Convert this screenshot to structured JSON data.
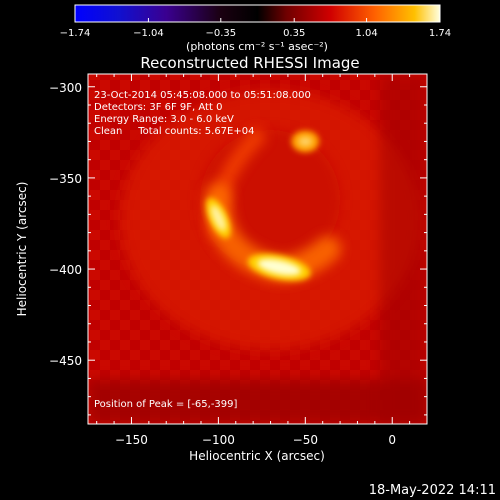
{
  "chart_data": {
    "type": "heatmap",
    "title": "Reconstructed RHESSI Image",
    "xlabel": "Heliocentric X (arcsec)",
    "ylabel": "Heliocentric Y (arcsec)",
    "xlim": [
      -175,
      20
    ],
    "ylim": [
      -485,
      -293
    ],
    "x_ticks": [
      -150,
      -100,
      -50,
      0
    ],
    "y_ticks": [
      -300,
      -350,
      -400,
      -450
    ],
    "x_tick_labels": [
      "−150",
      "−100",
      "−50",
      "0"
    ],
    "y_tick_labels": [
      "−300",
      "−350",
      "−400",
      "−450"
    ],
    "colorbar": {
      "min": -1.74,
      "max": 1.74,
      "tick_values": [
        -1.74,
        -1.04,
        -0.35,
        0.35,
        1.04,
        1.74
      ],
      "tick_labels": [
        "−1.74",
        "−1.04",
        "−0.35",
        "0.35",
        "1.04",
        "1.74"
      ],
      "unit_label": "(photons cm⁻² s⁻¹ asec⁻²)"
    },
    "sources": [
      {
        "x": -65,
        "y": -399,
        "intensity": 1.74
      },
      {
        "x": -100,
        "y": -372,
        "intensity": 1.3
      },
      {
        "x": -50,
        "y": -330,
        "intensity": 1.0
      }
    ],
    "annotations": [
      "23-Oct-2014 05:45:08.000 to 05:51:08.000",
      "Detectors: 3F 6F 9F, Att 0",
      "Energy Range: 3.0 - 6.0 keV",
      "Clean     Total counts: 5.67E+04"
    ],
    "peak_label": "Position of Peak = [-65,-399]"
  },
  "footer_date": "18-May-2022 14:11",
  "colors": {
    "background": "#000000",
    "text": "#ffffff"
  }
}
